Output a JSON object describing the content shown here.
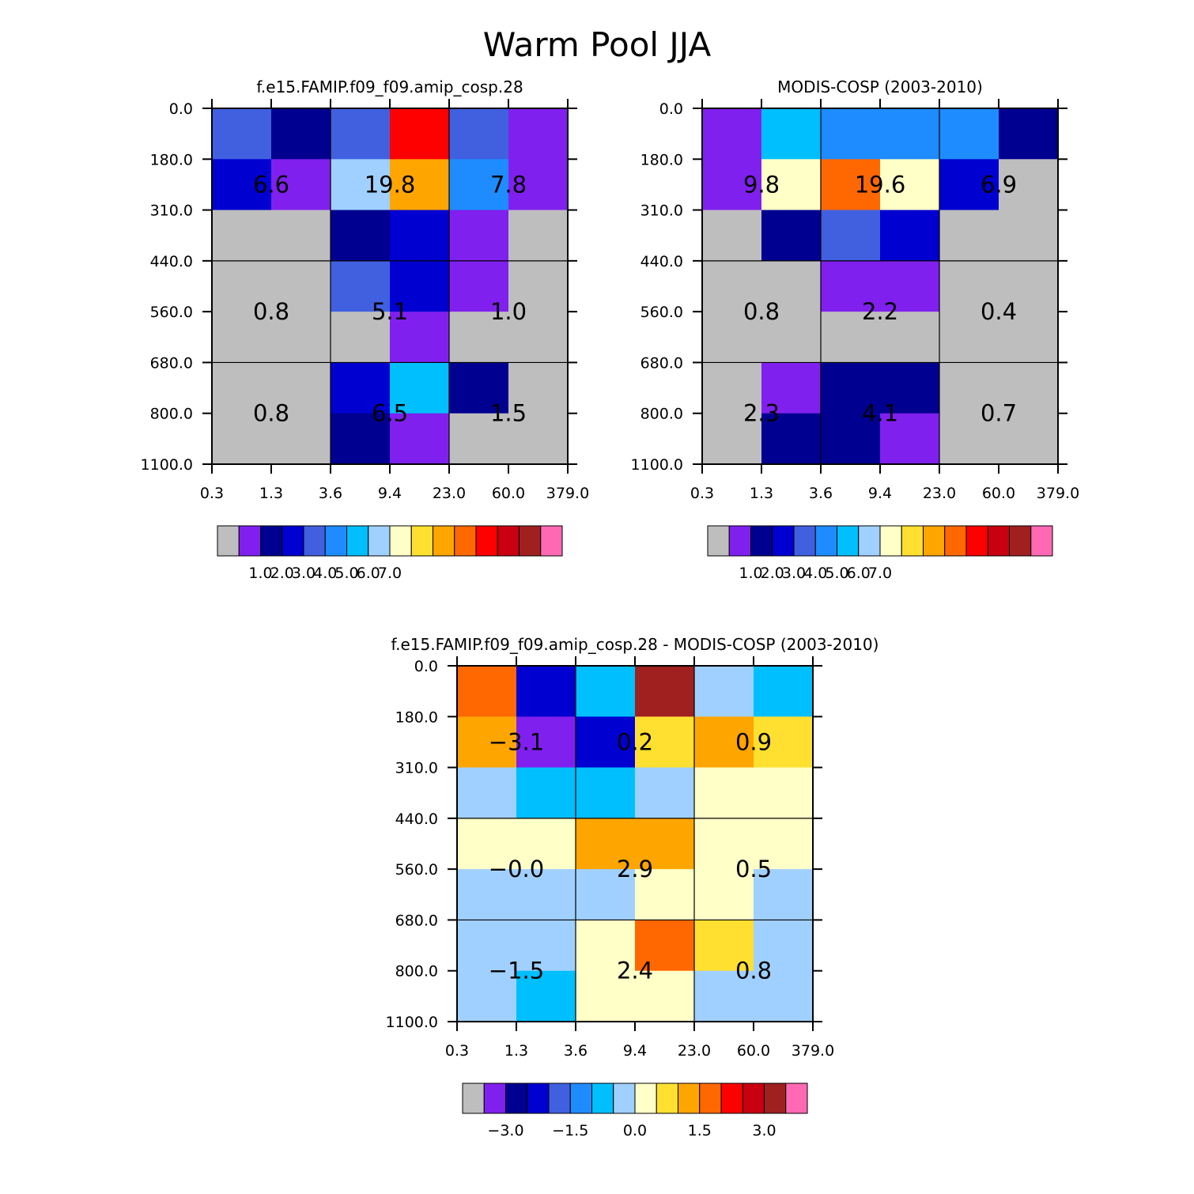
{
  "title": "Warm Pool JJA",
  "colors": {
    "scale": [
      "#bebebe",
      "#8020ee",
      "#000090",
      "#0000d0",
      "#4060e0",
      "#1e8cff",
      "#00bfff",
      "#a0d0ff",
      "#ffffc8",
      "#ffe030",
      "#ffa500",
      "#ff6800",
      "#ff0000",
      "#c80010",
      "#a02020",
      "#ff69b4"
    ]
  },
  "chart_data": [
    {
      "type": "heatmap",
      "title": "f.e15.FAMIP.f09_f09.amip_cosp.28",
      "x_ticks": [
        "0.3",
        "1.3",
        "3.6",
        "9.4",
        "23.0",
        "60.0",
        "379.0"
      ],
      "y_ticks": [
        "0.0",
        "180.0",
        "310.0",
        "440.0",
        "560.0",
        "680.0",
        "800.0",
        "1100.0"
      ],
      "cells": [
        [
          4,
          2,
          4,
          12,
          4,
          1
        ],
        [
          3,
          1,
          7,
          10,
          5,
          1
        ],
        [
          0,
          0,
          2,
          3,
          1,
          0
        ],
        [
          0,
          0,
          4,
          3,
          1,
          0
        ],
        [
          0,
          0,
          0,
          1,
          0,
          0
        ],
        [
          0,
          0,
          3,
          6,
          2,
          0
        ],
        [
          0,
          0,
          2,
          1,
          0,
          0
        ]
      ],
      "group_values": [
        [
          "6.6",
          "19.8",
          "7.8"
        ],
        [
          "0.8",
          "5.1",
          "1.0"
        ],
        [
          "0.8",
          "6.5",
          "1.5"
        ]
      ],
      "colorbar_labels": [
        "1.0",
        "2.0",
        "3.0",
        "4.0",
        "5.0",
        "6.0",
        "7.0"
      ]
    },
    {
      "type": "heatmap",
      "title": "MODIS-COSP (2003-2010)",
      "x_ticks": [
        "0.3",
        "1.3",
        "3.6",
        "9.4",
        "23.0",
        "60.0",
        "379.0"
      ],
      "y_ticks": [
        "0.0",
        "180.0",
        "310.0",
        "440.0",
        "560.0",
        "680.0",
        "800.0",
        "1100.0"
      ],
      "cells": [
        [
          1,
          6,
          5,
          5,
          5,
          2
        ],
        [
          1,
          8,
          11,
          8,
          3,
          0
        ],
        [
          0,
          2,
          4,
          3,
          0,
          0
        ],
        [
          0,
          0,
          1,
          1,
          0,
          0
        ],
        [
          0,
          0,
          0,
          0,
          0,
          0
        ],
        [
          0,
          1,
          2,
          2,
          0,
          0
        ],
        [
          0,
          2,
          2,
          1,
          0,
          0
        ]
      ],
      "group_values": [
        [
          "9.8",
          "19.6",
          "6.9"
        ],
        [
          "0.8",
          "2.2",
          "0.4"
        ],
        [
          "2.3",
          "4.1",
          "0.7"
        ]
      ],
      "colorbar_labels": [
        "1.0",
        "2.0",
        "3.0",
        "4.0",
        "5.0",
        "6.0",
        "7.0"
      ]
    },
    {
      "type": "heatmap",
      "title": "f.e15.FAMIP.f09_f09.amip_cosp.28 - MODIS-COSP (2003-2010)",
      "x_ticks": [
        "0.3",
        "1.3",
        "3.6",
        "9.4",
        "23.0",
        "60.0",
        "379.0"
      ],
      "y_ticks": [
        "0.0",
        "180.0",
        "310.0",
        "440.0",
        "560.0",
        "680.0",
        "800.0",
        "1100.0"
      ],
      "cells": [
        [
          11,
          3,
          6,
          14,
          7,
          6
        ],
        [
          10,
          1,
          3,
          9,
          10,
          9
        ],
        [
          7,
          6,
          6,
          7,
          8,
          8
        ],
        [
          8,
          8,
          10,
          10,
          8,
          8
        ],
        [
          7,
          7,
          7,
          8,
          8,
          7
        ],
        [
          7,
          7,
          8,
          11,
          9,
          7
        ],
        [
          7,
          6,
          8,
          8,
          7,
          7
        ]
      ],
      "group_values": [
        [
          "-3.1",
          "0.2",
          "0.9"
        ],
        [
          "-0.0",
          "2.9",
          "0.5"
        ],
        [
          "-1.5",
          "2.4",
          "0.8"
        ]
      ],
      "colorbar_labels": [
        "-3.0",
        "-1.5",
        "0.0",
        "1.5",
        "3.0"
      ]
    }
  ]
}
